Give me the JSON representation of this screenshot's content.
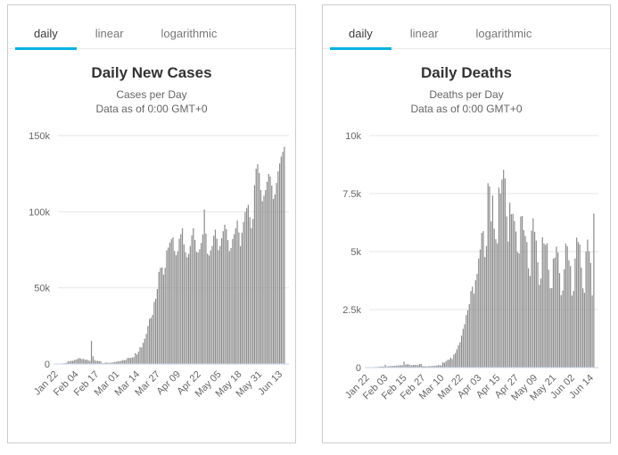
{
  "colors": {
    "accent": "#00b2e0",
    "bar": "#8d8d8d",
    "grid_line": "#e6e6e6",
    "axis_line": "#ccd6eb",
    "title_text": "#333333",
    "subtitle_text": "#666666"
  },
  "panels": [
    {
      "tabs": [
        {
          "label": "daily",
          "active": true
        },
        {
          "label": "linear",
          "active": false
        },
        {
          "label": "logarithmic",
          "active": false
        }
      ]
    },
    {
      "tabs": [
        {
          "label": "daily",
          "active": true
        },
        {
          "label": "linear",
          "active": false
        },
        {
          "label": "logarithmic",
          "active": false
        }
      ]
    }
  ],
  "chart_data": [
    {
      "type": "bar",
      "title": "Daily New Cases",
      "subtitle1": "Cases per Day",
      "subtitle2": "Data as of 0:00 GMT+0",
      "date_range": "Jan 22 - Jun 14",
      "ylim": [
        0,
        150000
      ],
      "y_tick_labels": [
        "0",
        "50k",
        "100k",
        "150k"
      ],
      "x_tick_every": 13,
      "x_tick_labels": [
        "Jan 22",
        "Feb 04",
        "Feb 17",
        "Mar 01",
        "Mar 14",
        "Mar 27",
        "Apr 09",
        "Apr 22",
        "May 05",
        "May 18",
        "May 31",
        "Jun 13"
      ],
      "grid": true,
      "legend": "none",
      "values": [
        98,
        259,
        277,
        486,
        523,
        695,
        1763,
        1828,
        1977,
        2099,
        2590,
        2827,
        3233,
        3892,
        3697,
        3151,
        3387,
        2653,
        2984,
        2473,
        2022,
        15152,
        5093,
        2663,
        2070,
        2051,
        1890,
        1752,
        516,
        624,
        893,
        1019,
        651,
        877,
        908,
        1174,
        1436,
        1385,
        1873,
        1806,
        2103,
        2572,
        2413,
        2706,
        3948,
        4093,
        3914,
        4290,
        4560,
        7113,
        6219,
        8071,
        10961,
        10967,
        13926,
        16602,
        19782,
        24930,
        29623,
        30338,
        32287,
        40788,
        42826,
        49211,
        60480,
        63123,
        63422,
        58628,
        63101,
        74699,
        76513,
        79653,
        81983,
        83201,
        74268,
        71426,
        74037,
        82268,
        85274,
        89078,
        78505,
        73392,
        70094,
        72278,
        77538,
        84412,
        89205,
        81461,
        73652,
        73292,
        75276,
        79456,
        85092,
        101558,
        85678,
        72432,
        71285,
        74612,
        77541,
        84245,
        88254,
        82361,
        74779,
        77485,
        82634,
        87266,
        91461,
        88547,
        81334,
        74216,
        76215,
        82145,
        85278,
        89162,
        94212,
        86414,
        77389,
        86258,
        93247,
        99780,
        102337,
        104505,
        96412,
        89214,
        95332,
        117465,
        128264,
        131168,
        125364,
        114213,
        106925,
        110521,
        114225,
        119642,
        124850,
        123124,
        117236,
        108421,
        111364,
        118925,
        126540,
        131721,
        136214,
        139371,
        142672
      ]
    },
    {
      "type": "bar",
      "title": "Daily Deaths",
      "subtitle1": "Deaths per Day",
      "subtitle2": "Data as of 0:00 GMT+0",
      "date_range": "Jan 22 - Jun 14",
      "ylim": [
        0,
        10000
      ],
      "y_tick_labels": [
        "0",
        "2.5k",
        "5k",
        "7.5k",
        "10k"
      ],
      "x_tick_every": 12,
      "x_tick_labels": [
        "Jan 22",
        "Feb 03",
        "Feb 15",
        "Feb 27",
        "Mar 10",
        "Mar 22",
        "Apr 03",
        "Apr 15",
        "Apr 27",
        "May 09",
        "May 21",
        "Jun 02",
        "Jun 14"
      ],
      "grid": true,
      "legend": "none",
      "values": [
        8,
        16,
        15,
        24,
        26,
        26,
        38,
        43,
        46,
        45,
        118,
        45,
        57,
        65,
        66,
        72,
        73,
        86,
        89,
        97,
        108,
        97,
        254,
        121,
        143,
        142,
        105,
        98,
        115,
        118,
        109,
        97,
        150,
        154,
        71,
        52,
        60,
        44,
        67,
        58,
        67,
        72,
        85,
        80,
        106,
        102,
        97,
        225,
        204,
        272,
        330,
        343,
        424,
        369,
        560,
        625,
        787,
        965,
        1087,
        1372,
        1670,
        1868,
        2267,
        2468,
        2732,
        3297,
        3488,
        3184,
        3767,
        4041,
        4702,
        5088,
        5803,
        5880,
        4767,
        5236,
        7950,
        7820,
        6300,
        7418,
        5986,
        5533,
        5353,
        7760,
        7500,
        8110,
        8526,
        8150,
        6514,
        5434,
        7106,
        6609,
        6628,
        6319,
        5865,
        4982,
        4920,
        6513,
        6539,
        5922,
        5670,
        5409,
        4280,
        3952,
        5903,
        6432,
        5852,
        5477,
        4539,
        3566,
        3836,
        5617,
        5349,
        5290,
        5361,
        4217,
        3419,
        3428,
        4692,
        4735,
        5214,
        4962,
        4069,
        3120,
        3323,
        4233,
        5342,
        5231,
        4628,
        4381,
        3104,
        3305,
        4702,
        5604,
        5412,
        5310,
        4308,
        3415,
        3220,
        4998,
        5516,
        5018,
        4512,
        3108,
        6640
      ]
    }
  ]
}
